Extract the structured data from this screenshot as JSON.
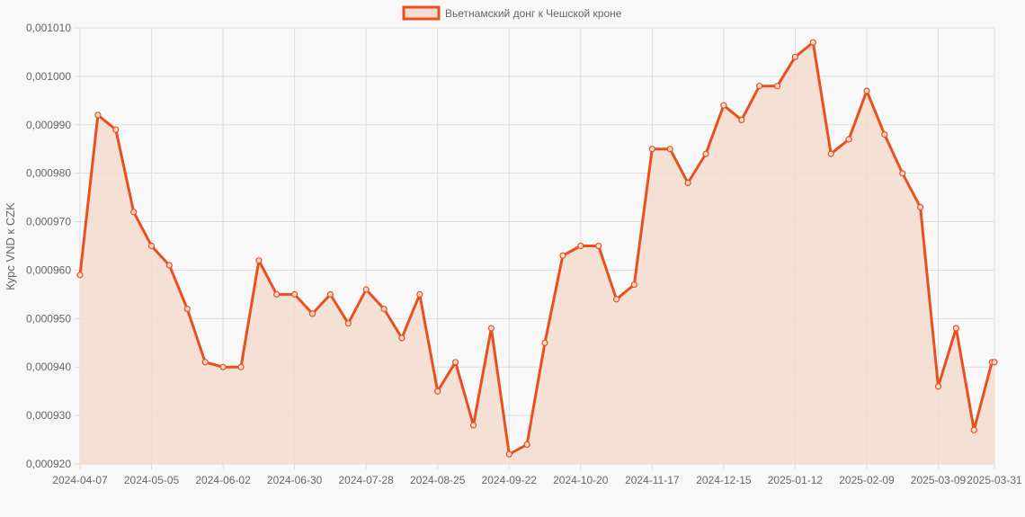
{
  "colors": {
    "line": "#e8501e",
    "fill": "#f5dccf",
    "grid": "#dddddd",
    "background": "#f8f8f8",
    "text": "#666666"
  },
  "chart_data": {
    "type": "area",
    "title": "",
    "xlabel": "",
    "ylabel": "Курс VND к CZK",
    "legend": {
      "position": "top",
      "label": "Вьетнамский донг к Чешской кроне"
    },
    "grid": true,
    "ylim": [
      0.00092,
      0.00101
    ],
    "y_ticks": [
      "0,000920",
      "0,000930",
      "0,000940",
      "0,000950",
      "0,000960",
      "0,000970",
      "0,000980",
      "0,000990",
      "0,001000",
      "0,001010"
    ],
    "x_ticks": [
      "2024-04-07",
      "2024-05-05",
      "2024-06-02",
      "2024-06-30",
      "2024-07-28",
      "2024-08-25",
      "2024-09-22",
      "2024-10-20",
      "2024-11-17",
      "2024-12-15",
      "2025-01-12",
      "2025-02-09",
      "2025-03-09",
      "2025-03-31"
    ],
    "series": [
      {
        "name": "Вьетнамский донг к Чешской кроне",
        "x": [
          "2024-04-07",
          "2024-04-14",
          "2024-04-21",
          "2024-04-28",
          "2024-05-05",
          "2024-05-12",
          "2024-05-19",
          "2024-05-26",
          "2024-06-02",
          "2024-06-09",
          "2024-06-16",
          "2024-06-23",
          "2024-06-30",
          "2024-07-07",
          "2024-07-14",
          "2024-07-21",
          "2024-07-28",
          "2024-08-04",
          "2024-08-11",
          "2024-08-18",
          "2024-08-25",
          "2024-09-01",
          "2024-09-08",
          "2024-09-15",
          "2024-09-22",
          "2024-09-29",
          "2024-10-06",
          "2024-10-13",
          "2024-10-20",
          "2024-10-27",
          "2024-11-03",
          "2024-11-10",
          "2024-11-17",
          "2024-11-24",
          "2024-12-01",
          "2024-12-08",
          "2024-12-15",
          "2024-12-22",
          "2024-12-29",
          "2025-01-05",
          "2025-01-12",
          "2025-01-19",
          "2025-01-26",
          "2025-02-02",
          "2025-02-09",
          "2025-02-16",
          "2025-02-23",
          "2025-03-02",
          "2025-03-09",
          "2025-03-16",
          "2025-03-23",
          "2025-03-30",
          "2025-03-31"
        ],
        "values": [
          0.000959,
          0.000992,
          0.000989,
          0.000972,
          0.000965,
          0.000961,
          0.000952,
          0.000941,
          0.00094,
          0.00094,
          0.000962,
          0.000955,
          0.000955,
          0.000951,
          0.000955,
          0.000949,
          0.000956,
          0.000952,
          0.000946,
          0.000955,
          0.000935,
          0.000941,
          0.000928,
          0.000948,
          0.000922,
          0.000924,
          0.000945,
          0.000963,
          0.000965,
          0.000965,
          0.000954,
          0.000957,
          0.000985,
          0.000985,
          0.000978,
          0.000984,
          0.000994,
          0.000991,
          0.000998,
          0.000998,
          0.001004,
          0.001007,
          0.000984,
          0.000987,
          0.000997,
          0.000988,
          0.00098,
          0.000973,
          0.000936,
          0.000948,
          0.000927,
          0.000941,
          0.000941
        ]
      }
    ]
  }
}
